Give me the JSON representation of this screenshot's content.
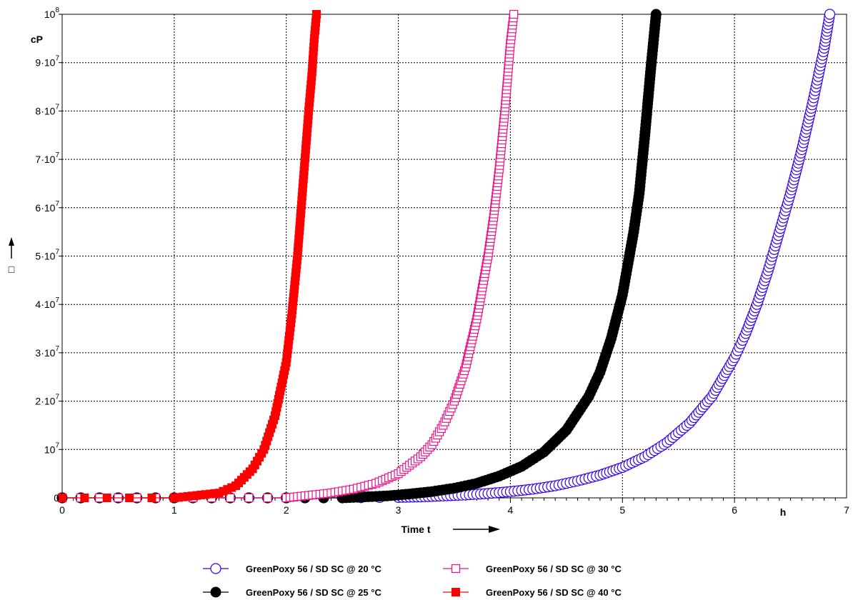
{
  "chart_data": {
    "type": "line",
    "xlabel": "Time t",
    "x_unit": "h",
    "ylabel_symbol": "□",
    "y_unit": "cP",
    "xlim": [
      0,
      7
    ],
    "ylim": [
      0,
      100000000
    ],
    "x_ticks": [
      "0",
      "1",
      "2",
      "3",
      "4",
      "5",
      "6",
      "7"
    ],
    "y_ticks": [
      {
        "value": 0,
        "mantissa": "0",
        "exp": ""
      },
      {
        "value": 10000000,
        "mantissa": "10",
        "exp": "7"
      },
      {
        "value": 20000000,
        "mantissa": "2·10",
        "exp": "7"
      },
      {
        "value": 30000000,
        "mantissa": "3·10",
        "exp": "7"
      },
      {
        "value": 40000000,
        "mantissa": "4·10",
        "exp": "7"
      },
      {
        "value": 50000000,
        "mantissa": "5·10",
        "exp": "7"
      },
      {
        "value": 60000000,
        "mantissa": "6·10",
        "exp": "7"
      },
      {
        "value": 70000000,
        "mantissa": "7·10",
        "exp": "7"
      },
      {
        "value": 80000000,
        "mantissa": "8·10",
        "exp": "7"
      },
      {
        "value": 90000000,
        "mantissa": "9·10",
        "exp": "7"
      },
      {
        "value": 100000000,
        "mantissa": "10",
        "exp": "8"
      }
    ],
    "grid": true,
    "legend_position": "bottom",
    "series": [
      {
        "name": "GreenPoxy 56 / SD SC  @  20 °C",
        "color": "#3300ee",
        "marker": "open-circle",
        "x": [
          0,
          0.5,
          1.0,
          1.5,
          2.0,
          2.5,
          3.0,
          3.2,
          3.4,
          3.6,
          3.8,
          4.0,
          4.2,
          4.4,
          4.6,
          4.8,
          5.0,
          5.2,
          5.4,
          5.6,
          5.8,
          6.0,
          6.1,
          6.2,
          6.3,
          6.4,
          6.5,
          6.6,
          6.7,
          6.8,
          6.85
        ],
        "y": [
          0,
          0,
          0,
          0,
          0,
          0,
          100000,
          200000,
          400000,
          600000,
          900000,
          1300000,
          1800000,
          2500000,
          3500000,
          4700000,
          6300000,
          8500000,
          11500000,
          15500000,
          21000000,
          29000000,
          34000000,
          40000000,
          47000000,
          55000000,
          63000000,
          72000000,
          82000000,
          93000000,
          100000000
        ]
      },
      {
        "name": "GreenPoxy 56 / SD SC  @  25 °C",
        "color": "#000000",
        "marker": "filled-circle",
        "x": [
          0,
          0.5,
          1.0,
          1.5,
          2.0,
          2.5,
          2.7,
          2.9,
          3.1,
          3.3,
          3.5,
          3.7,
          3.9,
          4.1,
          4.3,
          4.5,
          4.7,
          4.8,
          4.9,
          5.0,
          5.1,
          5.15,
          5.2,
          5.25,
          5.3
        ],
        "y": [
          0,
          0,
          0,
          0,
          0,
          0,
          200000,
          400000,
          800000,
          1300000,
          2000000,
          3000000,
          4500000,
          6500000,
          9500000,
          14000000,
          21000000,
          26000000,
          33000000,
          42000000,
          55000000,
          63000000,
          75000000,
          88000000,
          100000000
        ]
      },
      {
        "name": "GreenPoxy 56 / SD SC  @  30 °C",
        "color": "#ee1188",
        "marker": "open-square",
        "x": [
          0,
          0.5,
          1.0,
          1.5,
          2.0,
          2.2,
          2.4,
          2.6,
          2.8,
          3.0,
          3.2,
          3.3,
          3.4,
          3.5,
          3.6,
          3.7,
          3.8,
          3.85,
          3.9,
          3.95,
          4.0,
          4.03
        ],
        "y": [
          0,
          0,
          0,
          0,
          0,
          500000,
          1000000,
          1800000,
          3000000,
          5000000,
          8500000,
          11000000,
          15000000,
          20000000,
          27000000,
          37000000,
          50000000,
          58000000,
          68000000,
          80000000,
          94000000,
          100000000
        ]
      },
      {
        "name": "GreenPoxy 56 / SD SC  @  40 °C",
        "color": "#ff0000",
        "marker": "filled-square",
        "x": [
          0,
          0.2,
          0.4,
          0.6,
          0.8,
          1.0,
          1.2,
          1.4,
          1.55,
          1.7,
          1.8,
          1.9,
          2.0,
          2.05,
          2.1,
          2.15,
          2.2,
          2.23,
          2.25,
          2.27
        ],
        "y": [
          0,
          0,
          0,
          0,
          0,
          0,
          500000,
          1000000,
          2500000,
          6000000,
          10000000,
          17000000,
          28000000,
          38000000,
          50000000,
          65000000,
          80000000,
          88000000,
          95000000,
          100000000
        ]
      }
    ]
  }
}
